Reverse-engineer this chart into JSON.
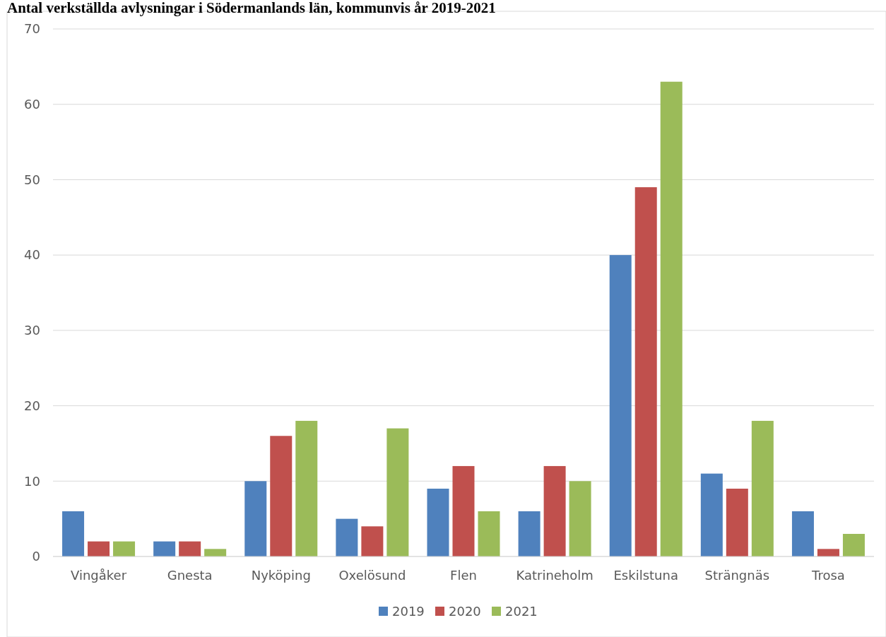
{
  "chart_data": {
    "type": "bar",
    "title": "Antal verkställda avlysningar i Södermanlands län, kommunvis år 2019-2021",
    "categories": [
      "Vingåker",
      "Gnesta",
      "Nyköping",
      "Oxelösund",
      "Flen",
      "Katrineholm",
      "Eskilstuna",
      "Strängnäs",
      "Trosa"
    ],
    "series": [
      {
        "name": "2019",
        "color": "#4f81bd",
        "values": [
          6,
          2,
          10,
          5,
          9,
          6,
          40,
          11,
          6
        ]
      },
      {
        "name": "2020",
        "color": "#c0504d",
        "values": [
          2,
          2,
          16,
          4,
          12,
          12,
          49,
          9,
          1
        ]
      },
      {
        "name": "2021",
        "color": "#9bbb59",
        "values": [
          2,
          1,
          18,
          17,
          6,
          10,
          63,
          18,
          3
        ]
      }
    ],
    "ylim": [
      0,
      70
    ],
    "yticks": [
      0,
      10,
      20,
      30,
      40,
      50,
      60,
      70
    ],
    "grid": "y",
    "legend": "bottom"
  }
}
